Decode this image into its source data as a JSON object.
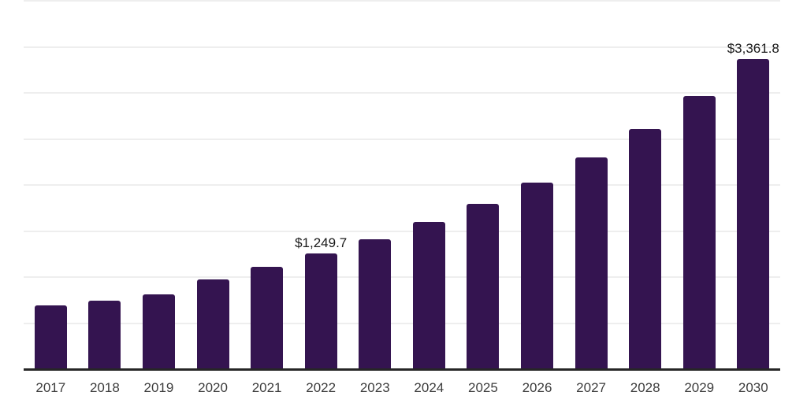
{
  "chart": {
    "colors": {
      "background": "#ffffff",
      "bar": "#341450",
      "axis_line": "#262626",
      "gridline": "#eeeeee",
      "data_label": "#1a1a1a",
      "tick_label": "#3d3d3d"
    }
  },
  "chart_data": {
    "type": "bar",
    "title": "",
    "xlabel": "",
    "ylabel": "",
    "categories": [
      "2017",
      "2018",
      "2019",
      "2020",
      "2021",
      "2022",
      "2023",
      "2024",
      "2025",
      "2026",
      "2027",
      "2028",
      "2029",
      "2030"
    ],
    "values": [
      680,
      735,
      805,
      965,
      1105,
      1249.7,
      1400,
      1590,
      1790,
      2015,
      2290,
      2595,
      2955,
      3361.8
    ],
    "data_labels": [
      "",
      "",
      "",
      "",
      "",
      "$1,249.7",
      "",
      "",
      "",
      "",
      "",
      "",
      "",
      "$3,361.8"
    ],
    "ylim": [
      0,
      4000
    ],
    "gridline_step": 500,
    "grid": "horizontal-only",
    "y_tick_labels_visible": false,
    "legend": false
  }
}
